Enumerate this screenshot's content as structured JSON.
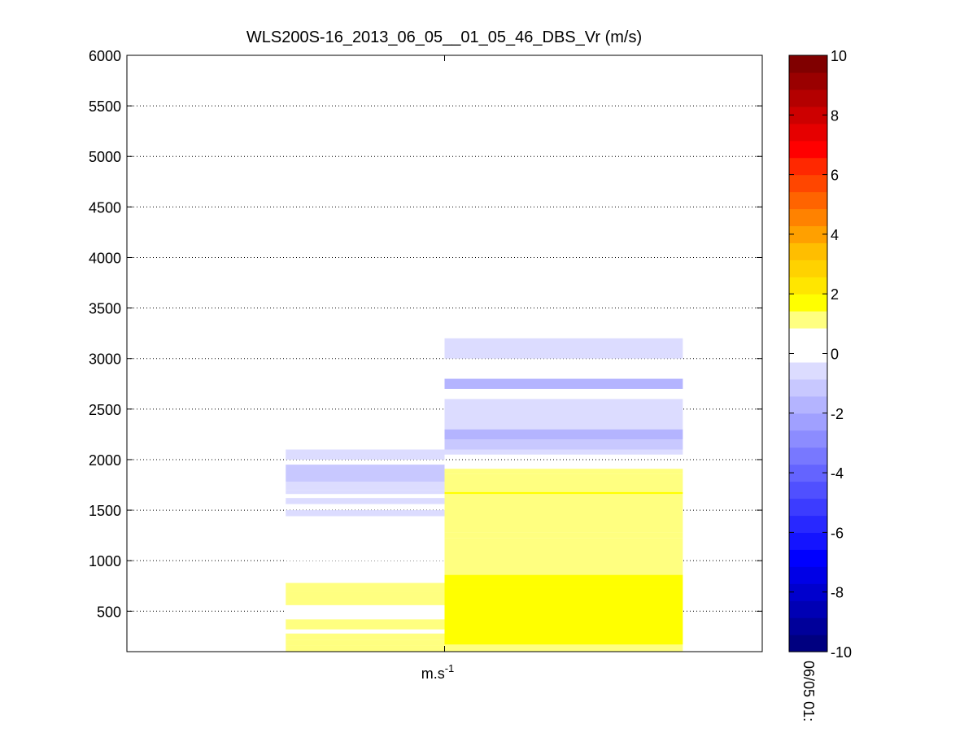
{
  "figure": {
    "title": "WLS200S-16_2013_06_05__01_05_46_DBS_Vr (m/s)",
    "xlabel_base": "m.s",
    "xlabel_sup": "-1",
    "time_label": "06/05 01:"
  },
  "colors": {
    "axis": "#000000",
    "grid": "#000000",
    "background": "#ffffff"
  },
  "chart_data": {
    "type": "heatmap",
    "title": "WLS200S-16_2013_06_05__01_05_46_DBS_Vr (m/s)",
    "xlabel": "m.s-1",
    "ylabel": "",
    "ylim": [
      100,
      6000
    ],
    "yticks": [
      500,
      1000,
      1500,
      2000,
      2500,
      3000,
      3500,
      4000,
      4500,
      5000,
      5500,
      6000
    ],
    "ygrid": true,
    "colorbar": {
      "min": -10,
      "max": 10,
      "ticks": [
        -10,
        -8,
        -6,
        -4,
        -2,
        0,
        2,
        4,
        6,
        8,
        10
      ],
      "position": "right",
      "colors": [
        "#000080",
        "#00009a",
        "#0000b4",
        "#0000cd",
        "#0000e6",
        "#0000ff",
        "#1414ff",
        "#2828ff",
        "#3c3cff",
        "#5050ff",
        "#6464ff",
        "#7878ff",
        "#8c8cff",
        "#a0a0ff",
        "#b4b4ff",
        "#c8c8ff",
        "#dcdcff",
        "#ffffff",
        "#ffffff",
        "#ffff80",
        "#ffff00",
        "#ffe600",
        "#ffd200",
        "#ffbe00",
        "#ffa000",
        "#ff8200",
        "#ff6400",
        "#ff4600",
        "#ff2800",
        "#ff0000",
        "#e60000",
        "#cd0000",
        "#b40000",
        "#9a0000",
        "#800000"
      ]
    },
    "columns": [
      {
        "x_start": 0.5,
        "x_end": 1.0,
        "cells": [
          {
            "z0": 100,
            "z1": 160,
            "value": 1.4
          },
          {
            "z0": 160,
            "z1": 220,
            "value": 1.2
          },
          {
            "z0": 220,
            "z1": 280,
            "value": 1.0
          },
          {
            "z0": 280,
            "z1": 320,
            "value": 0.6
          },
          {
            "z0": 320,
            "z1": 420,
            "value": 1.0
          },
          {
            "z0": 420,
            "z1": 560,
            "value": 0.6
          },
          {
            "z0": 560,
            "z1": 700,
            "value": 1.0
          },
          {
            "z0": 700,
            "z1": 780,
            "value": 1.0
          },
          {
            "z0": 780,
            "z1": 820,
            "value": 0.6
          },
          {
            "z0": 820,
            "z1": 980,
            "value": 0.6
          },
          {
            "z0": 1000,
            "z1": 1200,
            "value": 0.6
          },
          {
            "z0": 1440,
            "z1": 1500,
            "value": -0.6
          },
          {
            "z0": 1560,
            "z1": 1620,
            "value": -0.6
          },
          {
            "z0": 1660,
            "z1": 1700,
            "value": -0.6
          },
          {
            "z0": 1700,
            "z1": 1780,
            "value": -0.6
          },
          {
            "z0": 1780,
            "z1": 1950,
            "value": -1.2
          },
          {
            "z0": 2000,
            "z1": 2100,
            "value": -0.6
          },
          {
            "z0": 2150,
            "z1": 2200,
            "value": 0.6
          }
        ]
      },
      {
        "x_start": 1.0,
        "x_end": 1.75,
        "cells": [
          {
            "z0": 100,
            "z1": 170,
            "value": 1.4
          },
          {
            "z0": 170,
            "z1": 740,
            "value": 1.5
          },
          {
            "z0": 740,
            "z1": 860,
            "value": 1.7
          },
          {
            "z0": 860,
            "z1": 1220,
            "value": 1.4
          },
          {
            "z0": 1220,
            "z1": 1280,
            "value": 1.2
          },
          {
            "z0": 1280,
            "z1": 1660,
            "value": 1.4
          },
          {
            "z0": 1660,
            "z1": 1680,
            "value": 1.7
          },
          {
            "z0": 1680,
            "z1": 1860,
            "value": 1.2
          },
          {
            "z0": 1860,
            "z1": 1910,
            "value": 1.0
          },
          {
            "z0": 1910,
            "z1": 1940,
            "value": 0.6
          },
          {
            "z0": 2050,
            "z1": 2100,
            "value": -0.6
          },
          {
            "z0": 2100,
            "z1": 2200,
            "value": -1.2
          },
          {
            "z0": 2200,
            "z1": 2300,
            "value": -1.6
          },
          {
            "z0": 2300,
            "z1": 2600,
            "value": -0.6
          },
          {
            "z0": 2600,
            "z1": 2700,
            "value": 0.8
          },
          {
            "z0": 2700,
            "z1": 2800,
            "value": -1.6
          },
          {
            "z0": 3000,
            "z1": 3200,
            "value": -0.6
          }
        ]
      }
    ]
  }
}
